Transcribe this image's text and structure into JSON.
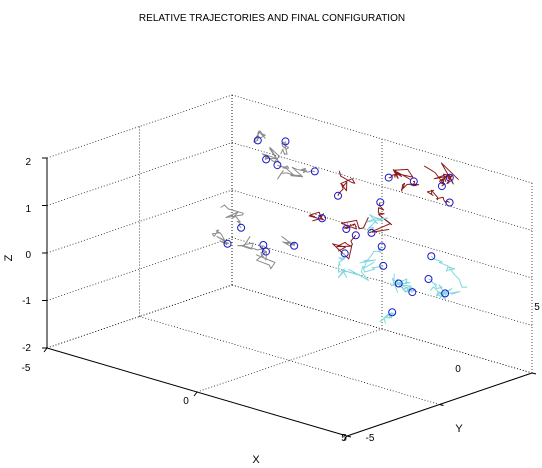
{
  "chart_data": {
    "type": "scatter",
    "projection": "3d",
    "title": "RELATIVE TRAJECTORIES AND FINAL CONFIGURATION",
    "xlabel": "X",
    "ylabel": "Y",
    "zlabel": "Z",
    "xlim": [
      -5,
      5
    ],
    "ylim": [
      -5,
      5
    ],
    "zlim": [
      -2,
      2
    ],
    "x_ticks": [
      -5,
      0,
      5
    ],
    "y_ticks": [
      -5,
      0,
      5
    ],
    "z_ticks": [
      -2,
      -1,
      0,
      1,
      2
    ],
    "x_tick_labels": [
      "-5",
      "0",
      "5"
    ],
    "y_tick_labels": [
      "-5",
      "0",
      "5"
    ],
    "z_tick_labels": [
      "-2",
      "-1",
      "0",
      "1",
      "2"
    ],
    "grid": true,
    "colors": {
      "brown_trajectories": "#8b1a1a",
      "gray_trajectories": "#8c8c8c",
      "cyan_trajectories": "#7fd8df",
      "final_position_marker": "#1a1acc"
    },
    "final_positions": [
      {
        "x": -2.6,
        "y": 4.0,
        "z": 1.6,
        "group": "gray"
      },
      {
        "x": -3.4,
        "y": 3.8,
        "z": 1.5,
        "group": "gray"
      },
      {
        "x": -3.0,
        "y": 3.6,
        "z": 1.2,
        "group": "gray"
      },
      {
        "x": -2.5,
        "y": 3.4,
        "z": 1.2,
        "group": "gray"
      },
      {
        "x": -1.5,
        "y": 3.8,
        "z": 1.2,
        "group": "gray"
      },
      {
        "x": -2.6,
        "y": 1.6,
        "z": 0.1,
        "group": "gray"
      },
      {
        "x": -1.8,
        "y": 1.5,
        "z": -0.1,
        "group": "gray"
      },
      {
        "x": -1.4,
        "y": 1.0,
        "z": -0.1,
        "group": "gray"
      },
      {
        "x": -1.2,
        "y": 2.2,
        "z": -0.1,
        "group": "gray"
      },
      {
        "x": -2.5,
        "y": 0.7,
        "z": -0.1,
        "group": "gray"
      },
      {
        "x": 0.9,
        "y": 3.9,
        "z": 1.5,
        "group": "brown"
      },
      {
        "x": 1.8,
        "y": 3.8,
        "z": 1.6,
        "group": "brown"
      },
      {
        "x": 2.8,
        "y": 3.7,
        "z": 1.7,
        "group": "brown"
      },
      {
        "x": 3.0,
        "y": 3.8,
        "z": 1.9,
        "group": "brown"
      },
      {
        "x": 3.3,
        "y": 3.3,
        "z": 1.5,
        "group": "brown"
      },
      {
        "x": 0.1,
        "y": 1.6,
        "z": 0.8,
        "group": "brown"
      },
      {
        "x": 0.2,
        "y": 2.3,
        "z": 1.2,
        "group": "brown"
      },
      {
        "x": 0.6,
        "y": 2.1,
        "z": 0.6,
        "group": "brown"
      },
      {
        "x": 1.3,
        "y": 2.8,
        "z": 1.2,
        "group": "brown"
      },
      {
        "x": 1.1,
        "y": 1.8,
        "z": 0.6,
        "group": "brown"
      },
      {
        "x": 1.9,
        "y": 1.9,
        "z": 0.5,
        "group": "cyan"
      },
      {
        "x": 2.2,
        "y": 1.5,
        "z": 0.2,
        "group": "cyan"
      },
      {
        "x": 2.9,
        "y": 1.2,
        "z": 0.0,
        "group": "cyan"
      },
      {
        "x": 3.6,
        "y": 0.8,
        "z": 0.0,
        "group": "cyan"
      },
      {
        "x": 3.8,
        "y": 1.5,
        "z": 0.7,
        "group": "cyan"
      },
      {
        "x": 4.2,
        "y": 0.7,
        "z": 0.4,
        "group": "cyan"
      },
      {
        "x": 3.3,
        "y": 0.2,
        "z": -0.4,
        "group": "cyan"
      },
      {
        "x": 5.0,
        "y": 0.3,
        "z": 0.3,
        "group": "cyan"
      },
      {
        "x": 1.1,
        "y": 1.2,
        "z": 0.3,
        "group": "cyan"
      },
      {
        "x": 1.5,
        "y": 2.0,
        "z": 0.7,
        "group": "cyan"
      }
    ]
  }
}
